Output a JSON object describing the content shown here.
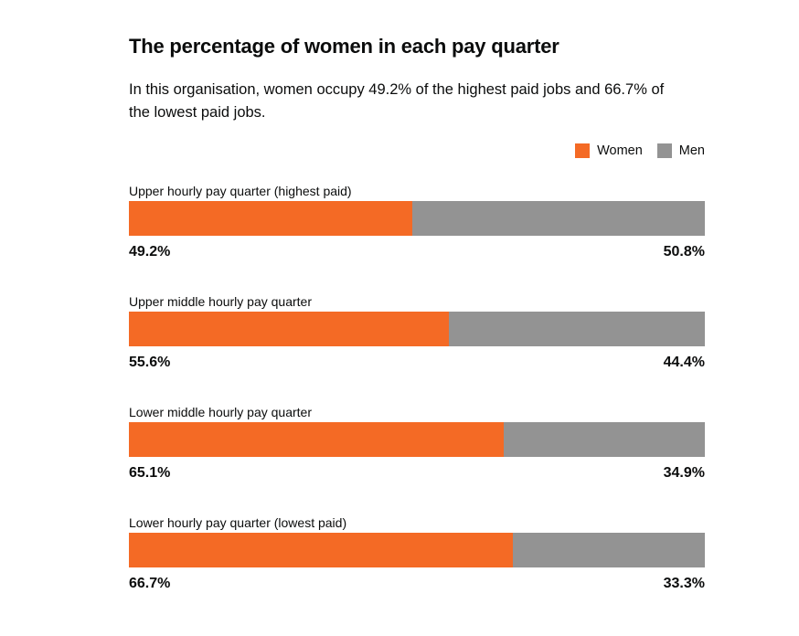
{
  "title": "The percentage of women in each pay quarter",
  "subtitle": "In this organisation, women occupy 49.2% of the highest paid jobs and 66.7% of the lowest paid jobs.",
  "legend": {
    "women_label": "Women",
    "men_label": "Men"
  },
  "colors": {
    "women": "#f46a25",
    "men": "#939393"
  },
  "chart_data": {
    "type": "bar",
    "orientation": "horizontal",
    "stacked": true,
    "title": "The percentage of women in each pay quarter",
    "subtitle": "In this organisation, women occupy 49.2% of the highest paid jobs and 66.7% of the lowest paid jobs.",
    "legend_position": "top-right",
    "grid": false,
    "xlim": [
      0,
      100
    ],
    "categories": [
      "Upper hourly pay quarter (highest paid)",
      "Upper middle hourly pay quarter",
      "Lower middle hourly pay quarter",
      "Lower hourly pay quarter (lowest paid)"
    ],
    "series": [
      {
        "name": "Women",
        "values": [
          49.2,
          55.6,
          65.1,
          66.7
        ]
      },
      {
        "name": "Men",
        "values": [
          50.8,
          44.4,
          34.9,
          33.3
        ]
      }
    ],
    "value_labels": {
      "women": [
        "49.2%",
        "55.6%",
        "65.1%",
        "66.7%"
      ],
      "men": [
        "50.8%",
        "44.4%",
        "34.9%",
        "33.3%"
      ]
    }
  }
}
